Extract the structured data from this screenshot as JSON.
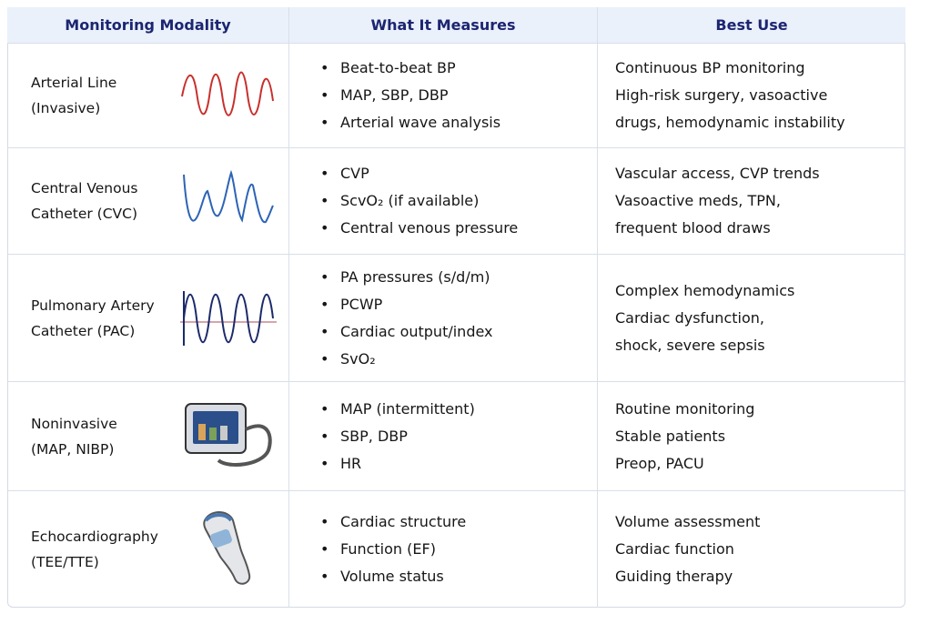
{
  "table": {
    "header": [
      "Monitoring Modality",
      "What It Measures",
      "Best Use"
    ],
    "rows": [
      {
        "modality": [
          "Arterial Line",
          "(Invasive)"
        ],
        "measures": [
          "Beat-to-beat BP",
          "MAP, SBP, DBP",
          "Arterial wave analysis"
        ],
        "best_use": [
          "Continuous BP monitoring",
          "High-risk surgery, vasoactive",
          "drugs, hemodynamic instability"
        ]
      },
      {
        "modality": [
          "Central Venous",
          "Catheter (CVC)"
        ],
        "measures": [
          "CVP",
          "ScvO₂ (if available)",
          "Central venous pressure"
        ],
        "best_use": [
          "Vascular access, CVP trends",
          "Vasoactive meds, TPN,",
          "frequent blood draws"
        ]
      },
      {
        "modality": [
          "Pulmonary Artery",
          "Catheter (PAC)"
        ],
        "measures": [
          "PA pressures (s/d/m)",
          "PCWP",
          "Cardiac output/index",
          "SvO₂"
        ],
        "best_use": [
          "Complex hemodynamics",
          "Cardiac dysfunction,",
          "shock, severe sepsis"
        ]
      },
      {
        "modality": [
          "Noninvasive",
          "(MAP, NIBP)"
        ],
        "measures": [
          "MAP (intermittent)",
          "SBP, DBP",
          "HR"
        ],
        "best_use": [
          "Routine monitoring",
          "Stable patients",
          "Preop, PACU"
        ]
      },
      {
        "modality": [
          "Echocardiography",
          "(TEE/TTE)"
        ],
        "measures": [
          "Cardiac structure",
          "Function (EF)",
          "Volume status"
        ],
        "best_use": [
          "Volume assessment",
          "Cardiac function",
          "Guiding therapy"
        ]
      }
    ]
  }
}
